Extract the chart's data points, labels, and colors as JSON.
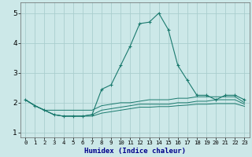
{
  "xlabel": "Humidex (Indice chaleur)",
  "x_values": [
    0,
    1,
    2,
    3,
    4,
    5,
    6,
    7,
    8,
    9,
    10,
    11,
    12,
    13,
    14,
    15,
    16,
    17,
    18,
    19,
    20,
    21,
    22,
    23
  ],
  "x_labels": [
    "0",
    "1",
    "2",
    "3",
    "4",
    "5",
    "6",
    "7",
    "8",
    "9",
    "10",
    "11",
    "12",
    "13",
    "14",
    "15",
    "16",
    "17",
    "18",
    "19",
    "20",
    "21",
    "22",
    "23"
  ],
  "main_line": [
    2.1,
    1.9,
    1.75,
    1.6,
    1.55,
    1.55,
    1.55,
    1.6,
    2.45,
    2.6,
    3.25,
    3.9,
    4.65,
    4.7,
    5.0,
    4.45,
    3.25,
    2.75,
    2.25,
    2.25,
    2.1,
    2.25,
    2.25,
    2.1
  ],
  "line_flat1": [
    2.1,
    1.9,
    1.75,
    1.75,
    1.75,
    1.75,
    1.75,
    1.75,
    1.9,
    1.95,
    2.0,
    2.0,
    2.05,
    2.1,
    2.1,
    2.1,
    2.15,
    2.15,
    2.2,
    2.2,
    2.2,
    2.2,
    2.2,
    2.0
  ],
  "line_flat2": [
    2.1,
    1.9,
    1.75,
    1.6,
    1.55,
    1.55,
    1.55,
    1.6,
    1.75,
    1.8,
    1.85,
    1.9,
    1.95,
    1.95,
    1.95,
    1.95,
    2.0,
    2.0,
    2.05,
    2.05,
    2.1,
    2.1,
    2.1,
    1.95
  ],
  "line_flat3": [
    2.1,
    1.9,
    1.75,
    1.6,
    1.55,
    1.55,
    1.55,
    1.55,
    1.65,
    1.7,
    1.75,
    1.8,
    1.85,
    1.85,
    1.87,
    1.87,
    1.9,
    1.92,
    1.95,
    1.95,
    1.97,
    1.97,
    1.97,
    1.88
  ],
  "color": "#1a7a6e",
  "bg_color": "#cce8e8",
  "grid_color": "#aacece",
  "ylim": [
    0.85,
    5.35
  ],
  "yticks": [
    1,
    2,
    3,
    4,
    5
  ],
  "xlim": [
    -0.5,
    23.5
  ],
  "xlabel_color": "#00008b",
  "xlabel_fontsize": 6.5,
  "tick_fontsize": 5.2,
  "ytick_fontsize": 6.5
}
